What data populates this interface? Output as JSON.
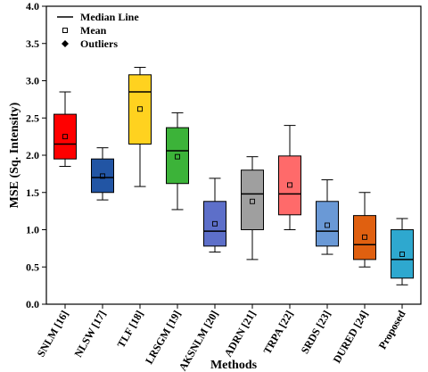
{
  "chart_data": {
    "type": "box",
    "xlabel": "Methods",
    "ylabel": "MSE (Sq. Intensity)",
    "ylim": [
      0.0,
      4.0
    ],
    "yticks": [
      "0.0",
      "0.5",
      "1.0",
      "1.5",
      "2.0",
      "2.5",
      "3.0",
      "3.5",
      "4.0"
    ],
    "categories": [
      "SNLM [16]",
      "NLSW [17]",
      "TLF [18]",
      "LRSGM [19]",
      "AKSNLM [20]",
      "ADRN [21]",
      "TRPA [22]",
      "SRDS [23]",
      "DURED [24]",
      "Proposed"
    ],
    "boxes": [
      {
        "min": 1.85,
        "q1": 1.95,
        "median": 2.15,
        "q3": 2.55,
        "max": 2.85,
        "mean": 2.25,
        "color": "#ff0000"
      },
      {
        "min": 1.4,
        "q1": 1.5,
        "median": 1.7,
        "q3": 1.95,
        "max": 2.1,
        "mean": 1.72,
        "color": "#2255a4"
      },
      {
        "min": 1.58,
        "q1": 2.15,
        "median": 2.85,
        "q3": 3.08,
        "max": 3.18,
        "mean": 2.62,
        "color": "#ffd21f"
      },
      {
        "min": 1.27,
        "q1": 1.62,
        "median": 2.06,
        "q3": 2.37,
        "max": 2.57,
        "mean": 1.98,
        "color": "#3cb339"
      },
      {
        "min": 0.7,
        "q1": 0.78,
        "median": 0.98,
        "q3": 1.38,
        "max": 1.69,
        "mean": 1.08,
        "color": "#5d6fc9"
      },
      {
        "min": 0.6,
        "q1": 1.0,
        "median": 1.48,
        "q3": 1.8,
        "max": 1.98,
        "mean": 1.38,
        "color": "#9f9f9f"
      },
      {
        "min": 1.0,
        "q1": 1.2,
        "median": 1.48,
        "q3": 1.99,
        "max": 2.4,
        "mean": 1.6,
        "color": "#ff6a6a"
      },
      {
        "min": 0.67,
        "q1": 0.78,
        "median": 0.98,
        "q3": 1.38,
        "max": 1.67,
        "mean": 1.06,
        "color": "#6a99d6"
      },
      {
        "min": 0.5,
        "q1": 0.6,
        "median": 0.8,
        "q3": 1.19,
        "max": 1.5,
        "mean": 0.9,
        "color": "#e06010"
      },
      {
        "min": 0.26,
        "q1": 0.35,
        "median": 0.6,
        "q3": 1.0,
        "max": 1.15,
        "mean": 0.67,
        "color": "#2ea8cf"
      }
    ],
    "legend": {
      "placement": "top-left",
      "entries": [
        "Median Line",
        "Mean",
        "Outliers"
      ]
    }
  }
}
